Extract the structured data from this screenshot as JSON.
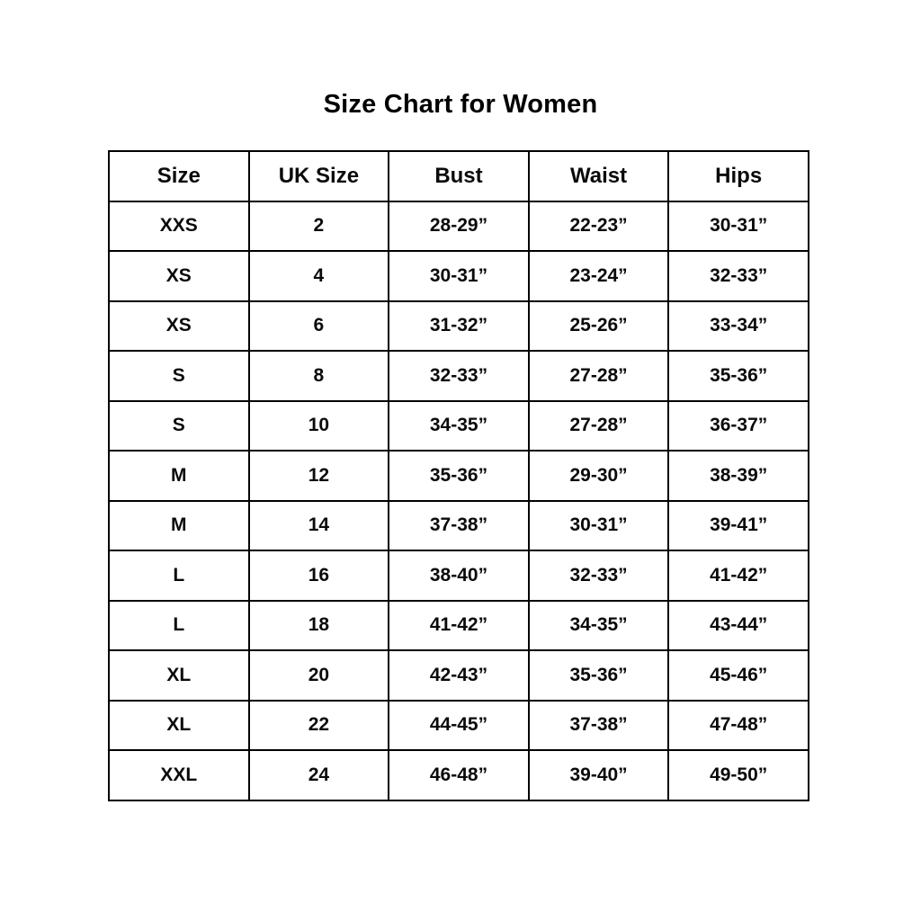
{
  "page": {
    "title": "Size Chart for Women"
  },
  "chart_data": {
    "type": "table",
    "title": "Size Chart for Women",
    "columns": [
      "Size",
      "UK Size",
      "Bust",
      "Waist",
      "Hips"
    ],
    "rows": [
      [
        "XXS",
        "2",
        "28-29”",
        "22-23”",
        "30-31”"
      ],
      [
        "XS",
        "4",
        "30-31”",
        "23-24”",
        "32-33”"
      ],
      [
        "XS",
        "6",
        "31-32”",
        "25-26”",
        "33-34”"
      ],
      [
        "S",
        "8",
        "32-33”",
        "27-28”",
        "35-36”"
      ],
      [
        "S",
        "10",
        "34-35”",
        "27-28”",
        "36-37”"
      ],
      [
        "M",
        "12",
        "35-36”",
        "29-30”",
        "38-39”"
      ],
      [
        "M",
        "14",
        "37-38”",
        "30-31”",
        "39-41”"
      ],
      [
        "L",
        "16",
        "38-40”",
        "32-33”",
        "41-42”"
      ],
      [
        "L",
        "18",
        "41-42”",
        "34-35”",
        "43-44”"
      ],
      [
        "XL",
        "20",
        "42-43”",
        "35-36”",
        "45-46”"
      ],
      [
        "XL",
        "22",
        "44-45”",
        "37-38”",
        "47-48”"
      ],
      [
        "XXL",
        "24",
        "46-48”",
        "39-40”",
        "49-50”"
      ]
    ],
    "colors": {
      "border": "#000000",
      "text": "#0a0a0a",
      "background": "#ffffff"
    }
  }
}
